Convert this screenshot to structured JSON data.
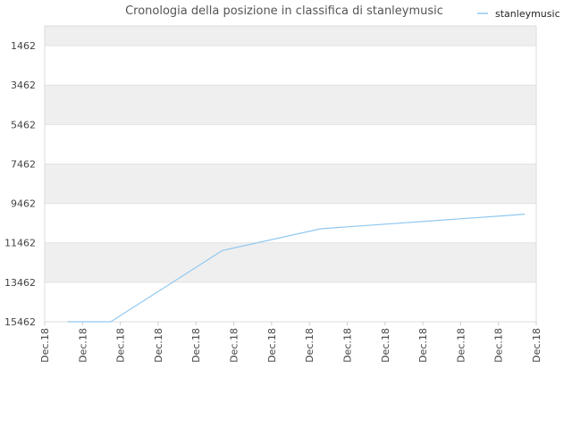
{
  "chart_data": {
    "type": "line",
    "title": "Cronologia della posizione in classifica di stanleymusic",
    "xlabel": "",
    "ylabel": "",
    "y_reversed": true,
    "ylim": [
      15462,
      462
    ],
    "y_ticks": [
      1462,
      3462,
      5462,
      7462,
      9462,
      11462,
      13462,
      15462
    ],
    "x_ticks": [
      "Dec.18",
      "Dec.18",
      "Dec.18",
      "Dec.18",
      "Dec.18",
      "Dec.18",
      "Dec.18",
      "Dec.18",
      "Dec.18",
      "Dec.18",
      "Dec.18",
      "Dec.18",
      "Dec.18",
      "Dec.18"
    ],
    "grid": true,
    "band_colors": [
      "#efefef",
      "#ffffff"
    ],
    "legend": {
      "position": "top-right"
    },
    "series": [
      {
        "name": "stanleymusic",
        "color": "#90c8f0",
        "points": [
          {
            "x": 0.6,
            "y": 15462
          },
          {
            "x": 1.75,
            "y": 15462
          },
          {
            "x": 4.7,
            "y": 11850
          },
          {
            "x": 7.3,
            "y": 10750
          },
          {
            "x": 8.0,
            "y": 10650
          },
          {
            "x": 12.4,
            "y": 10050
          },
          {
            "x": 12.7,
            "y": 10000
          }
        ]
      }
    ]
  }
}
